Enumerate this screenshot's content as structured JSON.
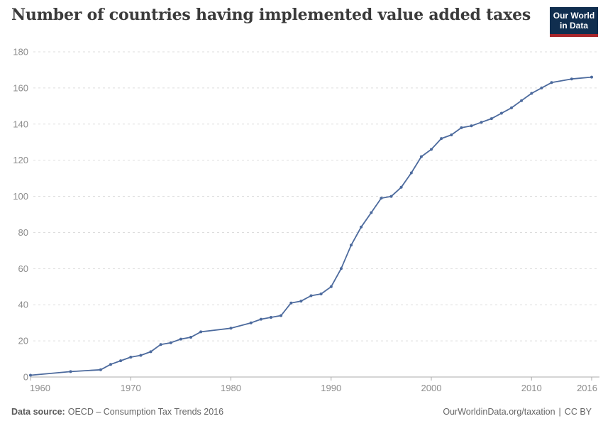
{
  "page": {
    "title": "Number of countries having implemented value added taxes"
  },
  "logo": {
    "line1": "Our World",
    "line2": "in Data"
  },
  "footer": {
    "source_label": "Data source:",
    "source_value": "OECD – Consumption Tax Trends 2016",
    "attribution": "OurWorldinData.org/taxation",
    "separator": "|",
    "license": "CC BY"
  },
  "colors": {
    "line": "#4C6A9D",
    "grid": "#DDDDDD",
    "axis": "#ABABAB",
    "tick_label": "#8C8C8C",
    "title_text": "#3B3B3B",
    "footer_text": "#666666",
    "logo_bg": "#102E4F",
    "logo_red": "#A8262B"
  },
  "chart_data": {
    "type": "line",
    "title": "Number of countries having implemented value added taxes",
    "xlabel": "",
    "ylabel": "",
    "xlim": [
      1960,
      2016
    ],
    "ylim": [
      0,
      180
    ],
    "grid": "horizontal-dashed",
    "legend": "none",
    "marker": "circle",
    "line_color": "#4C6A9D",
    "x_ticks": [
      "1960",
      "1970",
      "1980",
      "1990",
      "2000",
      "2010",
      "2016"
    ],
    "y_ticks": [
      0,
      20,
      40,
      60,
      80,
      100,
      120,
      140,
      160,
      180
    ],
    "x": [
      1960,
      1964,
      1967,
      1968,
      1969,
      1970,
      1971,
      1972,
      1973,
      1974,
      1975,
      1976,
      1977,
      1980,
      1982,
      1983,
      1984,
      1985,
      1986,
      1987,
      1988,
      1989,
      1990,
      1991,
      1992,
      1993,
      1994,
      1995,
      1996,
      1997,
      1998,
      1999,
      2000,
      2001,
      2002,
      2003,
      2004,
      2005,
      2006,
      2007,
      2008,
      2009,
      2010,
      2011,
      2012,
      2014,
      2016
    ],
    "values": [
      1,
      3,
      4,
      7,
      9,
      11,
      12,
      14,
      18,
      19,
      21,
      22,
      25,
      27,
      30,
      32,
      33,
      34,
      41,
      42,
      45,
      46,
      50,
      60,
      73,
      83,
      91,
      99,
      100,
      105,
      113,
      122,
      126,
      132,
      134,
      138,
      139,
      141,
      143,
      146,
      149,
      153,
      157,
      160,
      163,
      165,
      166
    ]
  }
}
